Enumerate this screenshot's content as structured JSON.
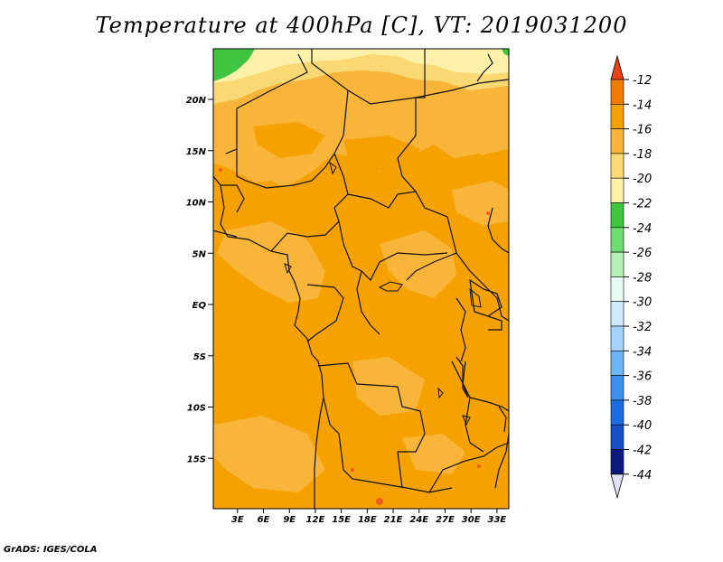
{
  "title": "Temperature at 400hPa [C], VT: 2019031200",
  "credit": "GrADS: IGES/COLA",
  "map": {
    "lat_labels": [
      "20N",
      "15N",
      "10N",
      "5N",
      "EQ",
      "5S",
      "10S",
      "15S"
    ],
    "lat_values": [
      20,
      15,
      10,
      5,
      0,
      -5,
      -10,
      -15
    ],
    "lon_labels": [
      "3E",
      "6E",
      "9E",
      "12E",
      "15E",
      "18E",
      "21E",
      "24E",
      "27E",
      "30E",
      "33E"
    ],
    "lon_values": [
      3,
      6,
      9,
      12,
      15,
      18,
      21,
      24,
      27,
      30,
      33
    ],
    "colors": {
      "lt_m14_gt_m16": "#f5a100",
      "m16_m18": "#f8b53a",
      "m18_m20": "#fad874",
      "m20_m22": "#fdf1a9",
      "m22_m24": "#3fc53f",
      "hot": "#ef5b1d",
      "coast": "#111111"
    }
  },
  "colorbar": {
    "labels": [
      "-12",
      "-14",
      "-16",
      "-18",
      "-20",
      "-22",
      "-24",
      "-26",
      "-28",
      "-30",
      "-32",
      "-34",
      "-36",
      "-38",
      "-40",
      "-42",
      "-44"
    ],
    "colors": [
      "#ef5b1d",
      "#f07a00",
      "#f5a100",
      "#f8b53a",
      "#fad874",
      "#fdf1a9",
      "#3fc53f",
      "#6fdc6f",
      "#b6f0b6",
      "#e7fbf4",
      "#cfeafd",
      "#a3d3fb",
      "#6fb4f5",
      "#3c90ee",
      "#1e6de0",
      "#1750c8",
      "#0c1a80"
    ],
    "top_color": "#e8431b",
    "bottom_color": "#dde0f5"
  }
}
